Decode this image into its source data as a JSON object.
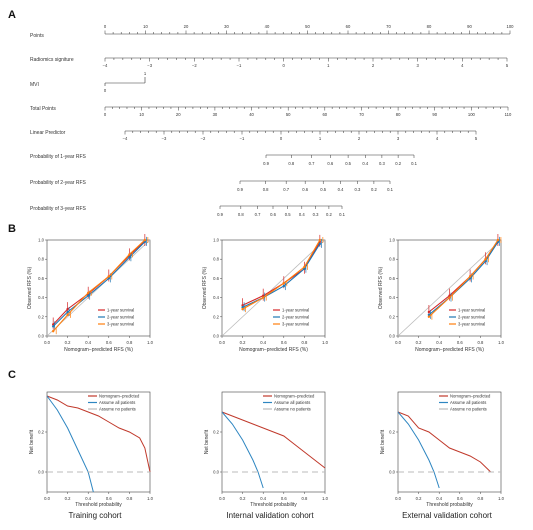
{
  "panel_labels": {
    "a": "A",
    "b": "B",
    "c": "C"
  },
  "nomogram": {
    "rows": [
      {
        "label": "Points",
        "min": 0,
        "max": 100,
        "labeled": [
          0,
          10,
          20,
          30,
          40,
          50,
          60,
          70,
          80,
          90,
          100
        ],
        "minor_step": 2,
        "label_side": "above"
      },
      {
        "label": "Radiomics signiture",
        "min": -4,
        "max": 5,
        "labeled": [
          -4,
          -3,
          -2,
          -1,
          0,
          1,
          2,
          3,
          4,
          5
        ],
        "minor_step": 0.2,
        "label_side": "below"
      },
      {
        "label": "MVI",
        "min": 0,
        "max": 1,
        "labeled": [
          0,
          1
        ],
        "minor_step": 1,
        "label_side": "mvi"
      },
      {
        "label": "Total Points",
        "min": 0,
        "max": 110,
        "labeled": [
          0,
          10,
          20,
          30,
          40,
          50,
          60,
          70,
          80,
          90,
          100,
          110
        ],
        "minor_step": 2,
        "label_side": "below"
      },
      {
        "label": "Linear Predictor",
        "min": -4,
        "max": 5,
        "labeled": [
          -4,
          -3,
          -2,
          -1,
          0,
          1,
          2,
          3,
          4,
          5
        ],
        "minor_step": 0.2,
        "label_side": "below"
      },
      {
        "label": "Probability of 1-year RFS",
        "labeled": [
          "0.9",
          "0.8",
          "0.7",
          "0.6",
          "0.5",
          "0.4",
          "0.3",
          "0.2",
          "0.1"
        ],
        "label_side": "below"
      },
      {
        "label": "Probability of 2-year RFS",
        "labeled": [
          "0.9",
          "0.8",
          "0.7",
          "0.6",
          "0.5",
          "0.4",
          "0.3",
          "0.2",
          "0.1"
        ],
        "label_side": "below"
      },
      {
        "label": "Probability of 3-year RFS",
        "labeled": [
          "0.9",
          "0.8",
          "0.7",
          "0.6",
          "0.5",
          "0.4",
          "0.3",
          "0.2",
          "0.1"
        ],
        "label_side": "below"
      }
    ]
  },
  "calibration": {
    "xlabel": "Nomogram−predicted RFS (%)",
    "ylabel": "Observed RFS (%)",
    "ticks": [
      "0.0",
      "0.2",
      "0.4",
      "0.6",
      "0.8",
      "1.0"
    ],
    "legend": [
      "1-year survival",
      "2-year survival",
      "3-year survival"
    ],
    "colors": {
      "y1": "#d62728",
      "y2": "#1f77b4",
      "y3": "#ff7f0e"
    }
  },
  "dca": {
    "xlabel": "Threshold probability",
    "ylabel": "Net benefit",
    "xticks": [
      "0.0",
      "0.2",
      "0.4",
      "0.6",
      "0.8",
      "1.0"
    ],
    "legend": [
      "Nomogram−predicted",
      "Assume all patients",
      "Assume no patients"
    ],
    "colors": {
      "nomogram": "#c0392b",
      "all": "#2e86c1",
      "none": "#bbbbbb"
    }
  },
  "cohorts": [
    "Training  cohort",
    "Internal validation cohort",
    "External validation cohort"
  ],
  "chart_data": [
    {
      "type": "line",
      "title": "Training  cohort",
      "xlabel": "Nomogram−predicted RFS (%)",
      "ylabel": "Observed RFS (%)",
      "xlim": [
        0,
        1
      ],
      "ylim": [
        0,
        1
      ],
      "series": [
        {
          "name": "1-year survival",
          "x": [
            0.06,
            0.2,
            0.4,
            0.6,
            0.8,
            0.95
          ],
          "y": [
            0.12,
            0.28,
            0.44,
            0.62,
            0.84,
            0.99
          ]
        },
        {
          "name": "2-year survival",
          "x": [
            0.06,
            0.2,
            0.4,
            0.6,
            0.8,
            0.95
          ],
          "y": [
            0.1,
            0.25,
            0.42,
            0.6,
            0.82,
            0.98
          ]
        },
        {
          "name": "3-year survival",
          "x": [
            0.06,
            0.2,
            0.4,
            0.6,
            0.8,
            0.95
          ],
          "y": [
            0.05,
            0.22,
            0.45,
            0.62,
            0.85,
            1.0
          ]
        }
      ]
    },
    {
      "type": "line",
      "title": "Internal validation cohort",
      "xlabel": "Nomogram−predicted RFS (%)",
      "ylabel": "Observed RFS (%)",
      "xlim": [
        0,
        1
      ],
      "ylim": [
        0,
        1
      ],
      "series": [
        {
          "name": "1-year survival",
          "x": [
            0.2,
            0.4,
            0.6,
            0.8,
            0.95
          ],
          "y": [
            0.32,
            0.42,
            0.55,
            0.7,
            0.98
          ]
        },
        {
          "name": "2-year survival",
          "x": [
            0.2,
            0.4,
            0.6,
            0.8,
            0.95
          ],
          "y": [
            0.3,
            0.4,
            0.52,
            0.7,
            0.96
          ]
        },
        {
          "name": "3-year survival",
          "x": [
            0.2,
            0.4,
            0.6,
            0.8,
            0.95
          ],
          "y": [
            0.28,
            0.4,
            0.55,
            0.72,
            1.0
          ]
        }
      ]
    },
    {
      "type": "line",
      "title": "External validation cohort",
      "xlabel": "Nomogram−predicted RFS (%)",
      "ylabel": "Observed RFS (%)",
      "xlim": [
        0,
        1
      ],
      "ylim": [
        0,
        1
      ],
      "series": [
        {
          "name": "1-year survival",
          "x": [
            0.3,
            0.5,
            0.7,
            0.85,
            0.97
          ],
          "y": [
            0.25,
            0.42,
            0.62,
            0.8,
            0.99
          ]
        },
        {
          "name": "2-year survival",
          "x": [
            0.3,
            0.5,
            0.7,
            0.85,
            0.97
          ],
          "y": [
            0.22,
            0.4,
            0.6,
            0.78,
            0.98
          ]
        },
        {
          "name": "3-year survival",
          "x": [
            0.3,
            0.5,
            0.7,
            0.85,
            0.97
          ],
          "y": [
            0.2,
            0.4,
            0.62,
            0.8,
            1.0
          ]
        }
      ]
    },
    {
      "type": "line",
      "title": "Training  cohort",
      "xlabel": "Threshold probability",
      "ylabel": "Net benefit",
      "xlim": [
        0,
        1
      ],
      "ylim": [
        -0.1,
        0.4
      ],
      "series": [
        {
          "name": "Nomogram−predicted",
          "x": [
            0,
            0.05,
            0.1,
            0.2,
            0.3,
            0.4,
            0.5,
            0.6,
            0.7,
            0.8,
            0.9,
            0.95,
            1.0
          ],
          "y": [
            0.38,
            0.37,
            0.36,
            0.33,
            0.32,
            0.3,
            0.28,
            0.25,
            0.22,
            0.2,
            0.17,
            0.12,
            0.0
          ]
        },
        {
          "name": "Assume all patients",
          "x": [
            0,
            0.1,
            0.2,
            0.3,
            0.4,
            0.45
          ],
          "y": [
            0.38,
            0.31,
            0.22,
            0.11,
            0.0,
            -0.1
          ]
        },
        {
          "name": "Assume no patients",
          "x": [
            0,
            1
          ],
          "y": [
            0,
            0
          ]
        }
      ]
    },
    {
      "type": "line",
      "title": "Internal validation cohort",
      "xlabel": "Threshold probability",
      "ylabel": "Net benefit",
      "xlim": [
        0,
        1
      ],
      "ylim": [
        -0.1,
        0.4
      ],
      "series": [
        {
          "name": "Nomogram−predicted",
          "x": [
            0,
            0.1,
            0.2,
            0.3,
            0.4,
            0.5,
            0.6,
            0.7,
            0.8,
            0.9,
            1.0
          ],
          "y": [
            0.3,
            0.28,
            0.26,
            0.24,
            0.22,
            0.2,
            0.18,
            0.14,
            0.1,
            0.06,
            0.02
          ]
        },
        {
          "name": "Assume all patients",
          "x": [
            0,
            0.1,
            0.2,
            0.3,
            0.35,
            0.4
          ],
          "y": [
            0.3,
            0.24,
            0.16,
            0.06,
            0.0,
            -0.08
          ]
        },
        {
          "name": "Assume no patients",
          "x": [
            0,
            1
          ],
          "y": [
            0,
            0
          ]
        }
      ]
    },
    {
      "type": "line",
      "title": "External validation cohort",
      "xlabel": "Threshold probability",
      "ylabel": "Net benefit",
      "xlim": [
        0,
        1
      ],
      "ylim": [
        -0.1,
        0.4
      ],
      "series": [
        {
          "name": "Nomogram−predicted",
          "x": [
            0,
            0.1,
            0.2,
            0.3,
            0.4,
            0.5,
            0.6,
            0.7,
            0.8,
            0.9
          ],
          "y": [
            0.3,
            0.28,
            0.22,
            0.2,
            0.16,
            0.12,
            0.1,
            0.08,
            0.05,
            0.0
          ]
        },
        {
          "name": "Assume all patients",
          "x": [
            0,
            0.1,
            0.2,
            0.3,
            0.35,
            0.4
          ],
          "y": [
            0.3,
            0.24,
            0.16,
            0.06,
            0.0,
            -0.08
          ]
        },
        {
          "name": "Assume no patients",
          "x": [
            0,
            1
          ],
          "y": [
            0,
            0
          ]
        }
      ]
    }
  ]
}
